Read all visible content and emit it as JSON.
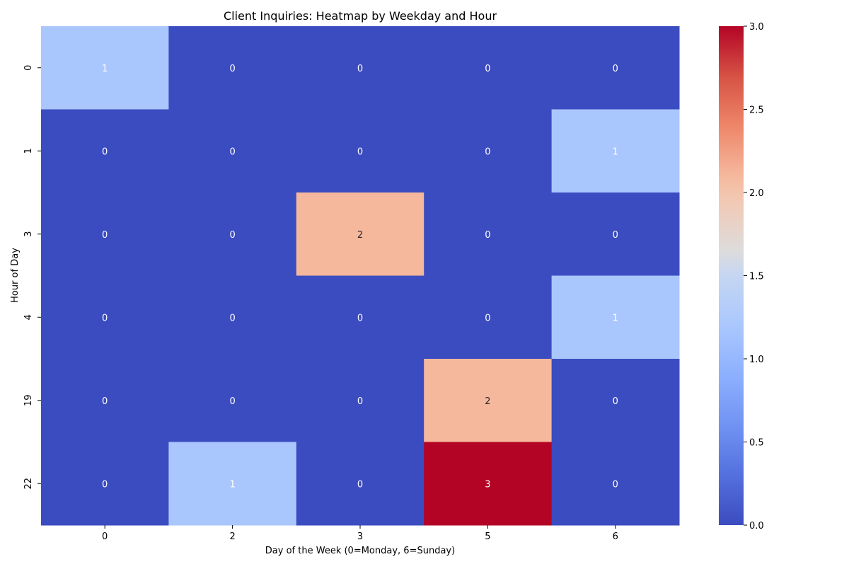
{
  "chart_data": {
    "type": "heatmap",
    "title": "Client Inquiries: Heatmap by Weekday and Hour",
    "xlabel": "Day of the Week (0=Monday, 6=Sunday)",
    "ylabel": "Hour of Day",
    "x_categories": [
      "0",
      "2",
      "3",
      "5",
      "6"
    ],
    "y_categories": [
      "0",
      "1",
      "3",
      "4",
      "19",
      "22"
    ],
    "values": [
      [
        1,
        0,
        0,
        0,
        0
      ],
      [
        0,
        0,
        0,
        0,
        1
      ],
      [
        0,
        0,
        2,
        0,
        0
      ],
      [
        0,
        0,
        0,
        0,
        1
      ],
      [
        0,
        0,
        0,
        2,
        0
      ],
      [
        0,
        1,
        0,
        3,
        0
      ]
    ],
    "colormap": "coolwarm",
    "vmin": 0,
    "vmax": 3,
    "colorbar_ticks": [
      "0.0",
      "0.5",
      "1.0",
      "1.5",
      "2.0",
      "2.5",
      "3.0"
    ],
    "annotate": true,
    "colors": {
      "0": "#3b4cc0",
      "1": "#aac7fd",
      "2": "#f5b89d",
      "3": "#b40426"
    }
  }
}
